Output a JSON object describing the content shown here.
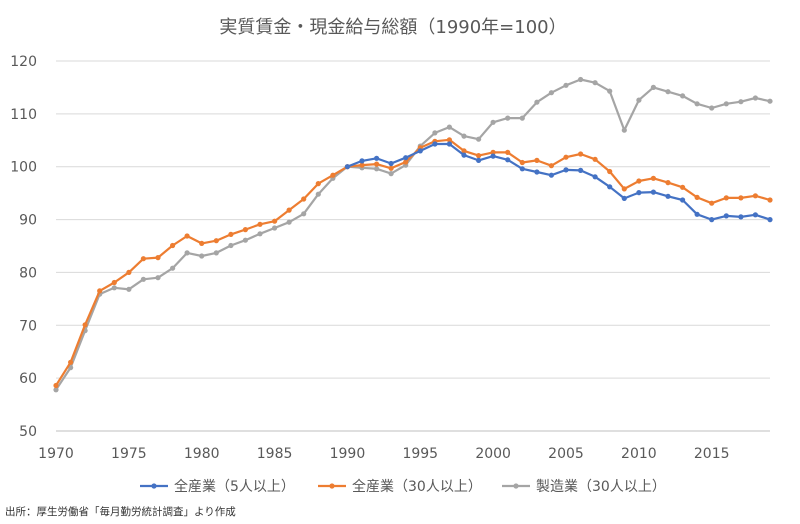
{
  "source_note": "出所：厚生労働省「毎月勤労統計調査」より作成",
  "chart_data": {
    "type": "line",
    "title": "実質賃金・現金給与総額（1990年=100）",
    "xlabel": "",
    "ylabel": "",
    "xlim": [
      1970,
      2019
    ],
    "ylim": [
      50,
      120
    ],
    "x_ticks": [
      1970,
      1975,
      1980,
      1985,
      1990,
      1995,
      2000,
      2005,
      2010,
      2015
    ],
    "y_ticks": [
      50,
      60,
      70,
      80,
      90,
      100,
      110,
      120
    ],
    "grid": "horizontal",
    "legend_position": "bottom",
    "x": [
      1970,
      1971,
      1972,
      1973,
      1974,
      1975,
      1976,
      1977,
      1978,
      1979,
      1980,
      1981,
      1982,
      1983,
      1984,
      1985,
      1986,
      1987,
      1988,
      1989,
      1990,
      1991,
      1992,
      1993,
      1994,
      1995,
      1996,
      1997,
      1998,
      1999,
      2000,
      2001,
      2002,
      2003,
      2004,
      2005,
      2006,
      2007,
      2008,
      2009,
      2010,
      2011,
      2012,
      2013,
      2014,
      2015,
      2016,
      2017,
      2018,
      2019
    ],
    "series": [
      {
        "name": "全産業（5人以上）",
        "color": "#4472C4",
        "values": [
          null,
          null,
          null,
          null,
          null,
          null,
          null,
          null,
          null,
          null,
          null,
          null,
          null,
          null,
          null,
          null,
          null,
          null,
          null,
          null,
          100.0,
          101.1,
          101.6,
          100.6,
          101.7,
          103.0,
          104.3,
          104.3,
          102.2,
          101.2,
          102.0,
          101.3,
          99.6,
          99.0,
          98.4,
          99.4,
          99.3,
          98.1,
          96.2,
          94.0,
          95.1,
          95.2,
          94.4,
          93.7,
          91.0,
          90.0,
          90.7,
          90.5,
          90.9,
          90.0
        ]
      },
      {
        "name": "全産業（30人以上）",
        "color": "#ED7D31",
        "values": [
          58.6,
          63.0,
          70.1,
          76.5,
          78.1,
          80.0,
          82.6,
          82.8,
          85.1,
          86.9,
          85.5,
          86.0,
          87.2,
          88.1,
          89.1,
          89.7,
          91.8,
          93.9,
          96.8,
          98.4,
          100.0,
          100.3,
          100.5,
          99.7,
          100.9,
          103.6,
          104.8,
          105.1,
          103.0,
          102.1,
          102.7,
          102.7,
          100.8,
          101.2,
          100.2,
          101.8,
          102.4,
          101.4,
          99.1,
          95.8,
          97.3,
          97.8,
          97.0,
          96.1,
          94.2,
          93.1,
          94.1,
          94.1,
          94.5,
          93.7
        ]
      },
      {
        "name": "製造業（30人以上）",
        "color": "#A5A5A5",
        "values": [
          57.8,
          62.0,
          69.0,
          75.9,
          77.1,
          76.8,
          78.7,
          79.0,
          80.8,
          83.7,
          83.1,
          83.7,
          85.1,
          86.1,
          87.3,
          88.4,
          89.5,
          91.1,
          94.8,
          97.8,
          100.0,
          99.8,
          99.6,
          98.7,
          100.3,
          103.9,
          106.4,
          107.5,
          105.8,
          105.2,
          108.4,
          109.2,
          109.2,
          112.2,
          114.0,
          115.4,
          116.5,
          115.9,
          114.3,
          106.9,
          112.6,
          115.0,
          114.2,
          113.4,
          111.9,
          111.1,
          111.9,
          112.3,
          113.0,
          112.4
        ]
      }
    ]
  }
}
